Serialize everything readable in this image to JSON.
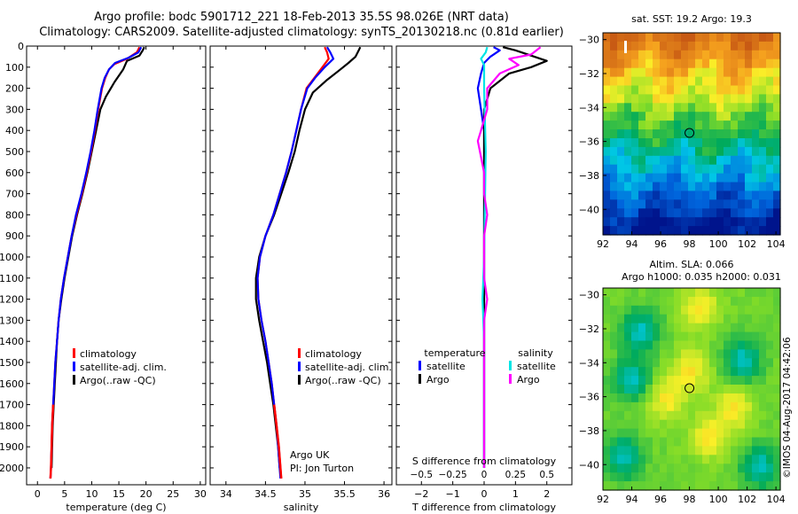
{
  "header": {
    "line1": "Argo profile: bodc 5901712_221 18-Feb-2013 35.5S 98.026E (NRT data)",
    "line2": "Climatology: CARS2009. Satellite-adjusted climatology: synTS_20130218.nc (0.81d earlier)"
  },
  "colors": {
    "climatology": "#ff0000",
    "satellite": "#0000ff",
    "argo": "#000000",
    "salinity_satellite": "#00e5e5",
    "salinity_argo": "#ff00ff"
  },
  "chart_data": [
    {
      "type": "line",
      "xlabel": "temperature (deg C)",
      "ylabel": "",
      "xlim": [
        -2,
        31
      ],
      "ylim": [
        2080,
        0
      ],
      "xticks": [
        "0",
        "5",
        "10",
        "15",
        "20",
        "25",
        "30"
      ],
      "yticks": [
        "0",
        "100",
        "200",
        "300",
        "400",
        "500",
        "600",
        "700",
        "800",
        "900",
        "1000",
        "1100",
        "1200",
        "1300",
        "1400",
        "1500",
        "1600",
        "1700",
        "1800",
        "1900",
        "2000"
      ],
      "legend": [
        "climatology",
        "satellite-adj. clim.",
        "Argo(..raw -QC)"
      ],
      "legend_loc": "lower-center",
      "series": [
        {
          "name": "climatology",
          "color": "#ff0000",
          "points": [
            [
              18.8,
              5
            ],
            [
              18.3,
              30
            ],
            [
              16.5,
              60
            ],
            [
              14.2,
              85
            ],
            [
              13.2,
              110
            ],
            [
              12.5,
              150
            ],
            [
              11.9,
              200
            ],
            [
              11.2,
              300
            ],
            [
              10.6,
              400
            ],
            [
              9.9,
              500
            ],
            [
              9.1,
              600
            ],
            [
              8.2,
              700
            ],
            [
              7.2,
              800
            ],
            [
              6.3,
              900
            ],
            [
              5.6,
              1000
            ],
            [
              4.9,
              1100
            ],
            [
              4.3,
              1200
            ],
            [
              3.9,
              1300
            ],
            [
              3.6,
              1400
            ],
            [
              3.3,
              1500
            ],
            [
              3.1,
              1600
            ],
            [
              2.9,
              1700
            ],
            [
              2.7,
              1800
            ],
            [
              2.6,
              1900
            ],
            [
              2.5,
              2000
            ],
            [
              2.4,
              2050
            ]
          ]
        },
        {
          "name": "satellite-adj. clim.",
          "color": "#0000ff",
          "points": [
            [
              19.1,
              5
            ],
            [
              18.6,
              30
            ],
            [
              16.8,
              55
            ],
            [
              14.3,
              80
            ],
            [
              13.2,
              110
            ],
            [
              12.4,
              150
            ],
            [
              11.8,
              200
            ],
            [
              11.1,
              300
            ],
            [
              10.5,
              400
            ],
            [
              9.8,
              500
            ],
            [
              9.0,
              600
            ],
            [
              8.1,
              700
            ],
            [
              7.1,
              800
            ],
            [
              6.3,
              900
            ],
            [
              5.6,
              1000
            ],
            [
              4.9,
              1100
            ],
            [
              4.3,
              1200
            ],
            [
              3.9,
              1300
            ],
            [
              3.6,
              1400
            ],
            [
              3.3,
              1500
            ],
            [
              3.1,
              1600
            ],
            [
              2.9,
              1700
            ],
            [
              2.7,
              1800
            ],
            [
              2.6,
              1900
            ],
            [
              2.5,
              2000
            ],
            [
              2.4,
              2050
            ]
          ]
        },
        {
          "name": "Argo(..raw -QC)",
          "color": "#000000",
          "points": [
            [
              19.7,
              5
            ],
            [
              19.4,
              20
            ],
            [
              18.8,
              45
            ],
            [
              16.5,
              70
            ],
            [
              15.8,
              110
            ],
            [
              14.2,
              170
            ],
            [
              12.6,
              240
            ],
            [
              11.6,
              300
            ],
            [
              10.8,
              400
            ],
            [
              10.0,
              500
            ],
            [
              9.2,
              600
            ],
            [
              8.3,
              700
            ],
            [
              7.3,
              800
            ],
            [
              6.4,
              900
            ],
            [
              5.7,
              1000
            ],
            [
              5.0,
              1100
            ],
            [
              4.4,
              1200
            ],
            [
              3.9,
              1300
            ],
            [
              3.6,
              1400
            ],
            [
              3.4,
              1500
            ],
            [
              3.2,
              1600
            ],
            [
              3.0,
              1700
            ],
            [
              2.8,
              1800
            ],
            [
              2.7,
              1900
            ],
            [
              2.6,
              2000
            ]
          ]
        }
      ]
    },
    {
      "type": "line",
      "xlabel": "salinity",
      "xlim": [
        33.8,
        36.1
      ],
      "ylim": [
        2080,
        0
      ],
      "xticks": [
        "34",
        "34.5",
        "35",
        "35.5",
        "36"
      ],
      "legend": [
        "climatology",
        "satellite-adj. clim.",
        "Argo(..raw -QC)"
      ],
      "annotation": [
        "Argo UK",
        "PI: Jon Turton"
      ],
      "series": [
        {
          "name": "climatology",
          "color": "#ff0000",
          "points": [
            [
              35.25,
              5
            ],
            [
              35.28,
              30
            ],
            [
              35.3,
              60
            ],
            [
              35.22,
              100
            ],
            [
              35.12,
              150
            ],
            [
              35.02,
              200
            ],
            [
              34.95,
              300
            ],
            [
              34.89,
              400
            ],
            [
              34.83,
              500
            ],
            [
              34.76,
              600
            ],
            [
              34.68,
              700
            ],
            [
              34.6,
              800
            ],
            [
              34.5,
              900
            ],
            [
              34.43,
              1000
            ],
            [
              34.4,
              1100
            ],
            [
              34.41,
              1200
            ],
            [
              34.45,
              1300
            ],
            [
              34.5,
              1400
            ],
            [
              34.54,
              1500
            ],
            [
              34.58,
              1600
            ],
            [
              34.61,
              1700
            ],
            [
              34.64,
              1800
            ],
            [
              34.67,
              1900
            ],
            [
              34.69,
              2000
            ],
            [
              34.7,
              2050
            ]
          ]
        },
        {
          "name": "satellite-adj. clim.",
          "color": "#0000ff",
          "points": [
            [
              35.28,
              5
            ],
            [
              35.32,
              30
            ],
            [
              35.36,
              60
            ],
            [
              35.25,
              100
            ],
            [
              35.13,
              150
            ],
            [
              35.03,
              200
            ],
            [
              34.95,
              300
            ],
            [
              34.89,
              400
            ],
            [
              34.83,
              500
            ],
            [
              34.76,
              600
            ],
            [
              34.68,
              700
            ],
            [
              34.6,
              800
            ],
            [
              34.5,
              900
            ],
            [
              34.43,
              1000
            ],
            [
              34.4,
              1100
            ],
            [
              34.41,
              1200
            ],
            [
              34.45,
              1300
            ],
            [
              34.5,
              1400
            ],
            [
              34.54,
              1500
            ],
            [
              34.58,
              1600
            ],
            [
              34.61,
              1700
            ],
            [
              34.64,
              1800
            ],
            [
              34.66,
              1900
            ],
            [
              34.68,
              2000
            ],
            [
              34.69,
              2050
            ]
          ]
        },
        {
          "name": "Argo(..raw -QC)",
          "color": "#000000",
          "points": [
            [
              35.7,
              5
            ],
            [
              35.68,
              20
            ],
            [
              35.64,
              50
            ],
            [
              35.55,
              80
            ],
            [
              35.45,
              110
            ],
            [
              35.28,
              160
            ],
            [
              35.1,
              220
            ],
            [
              35.0,
              300
            ],
            [
              34.93,
              400
            ],
            [
              34.87,
              500
            ],
            [
              34.79,
              600
            ],
            [
              34.7,
              700
            ],
            [
              34.61,
              800
            ],
            [
              34.5,
              900
            ],
            [
              34.42,
              1000
            ],
            [
              34.38,
              1100
            ],
            [
              34.38,
              1200
            ],
            [
              34.42,
              1300
            ],
            [
              34.47,
              1400
            ],
            [
              34.52,
              1500
            ],
            [
              34.56,
              1600
            ],
            [
              34.6,
              1700
            ],
            [
              34.63,
              1800
            ],
            [
              34.66,
              1900
            ],
            [
              34.68,
              2000
            ]
          ]
        }
      ]
    },
    {
      "type": "line",
      "xlabel": "T difference from climatology",
      "xlabel_top": "S difference from climatology",
      "xlim": [
        -2.8,
        2.8
      ],
      "ylim": [
        2080,
        0
      ],
      "xticks": [
        "-2",
        "-1",
        "0",
        "1",
        "2"
      ],
      "xticks_top": [
        "-0.5",
        "-0.25",
        "0",
        "0.25",
        "0.5"
      ],
      "legend_headers": [
        "temperature",
        "salinity"
      ],
      "legend": [
        "satellite",
        "Argo",
        "satellite",
        "Argo"
      ],
      "series": [
        {
          "name": "temperature satellite",
          "color": "#0000ff",
          "points": [
            [
              0.3,
              5
            ],
            [
              0.5,
              20
            ],
            [
              0.2,
              50
            ],
            [
              0.0,
              80
            ],
            [
              -0.1,
              130
            ],
            [
              -0.2,
              200
            ],
            [
              -0.1,
              300
            ],
            [
              0.0,
              400
            ],
            [
              0.0,
              600
            ],
            [
              0.0,
              1000
            ],
            [
              0.0,
              2000
            ]
          ]
        },
        {
          "name": "temperature Argo",
          "color": "#000000",
          "points": [
            [
              0.6,
              5
            ],
            [
              1.0,
              20
            ],
            [
              2.0,
              70
            ],
            [
              1.5,
              100
            ],
            [
              0.8,
              130
            ],
            [
              0.2,
              200
            ],
            [
              0.0,
              300
            ],
            [
              0.0,
              400
            ],
            [
              0.0,
              600
            ],
            [
              0.0,
              1000
            ],
            [
              0.0,
              2000
            ]
          ]
        },
        {
          "name": "salinity satellite",
          "color": "#00e5e5",
          "points": [
            [
              0.1,
              5
            ],
            [
              0.05,
              30
            ],
            [
              -0.1,
              60
            ],
            [
              0.0,
              90
            ],
            [
              0.0,
              200
            ],
            [
              0.05,
              500
            ],
            [
              0.0,
              1000
            ],
            [
              -0.05,
              1200
            ],
            [
              0.0,
              1400
            ],
            [
              0.0,
              2000
            ]
          ]
        },
        {
          "name": "salinity Argo",
          "color": "#ff00ff",
          "points": [
            [
              1.8,
              5
            ],
            [
              1.5,
              40
            ],
            [
              0.8,
              60
            ],
            [
              1.1,
              90
            ],
            [
              0.5,
              130
            ],
            [
              0.1,
              200
            ],
            [
              0.1,
              300
            ],
            [
              -0.1,
              400
            ],
            [
              -0.2,
              450
            ],
            [
              0.0,
              600
            ],
            [
              0.0,
              700
            ],
            [
              0.1,
              800
            ],
            [
              0.0,
              900
            ],
            [
              0.0,
              1100
            ],
            [
              0.1,
              1200
            ],
            [
              0.0,
              1300
            ],
            [
              0.0,
              2000
            ]
          ]
        }
      ]
    },
    {
      "type": "heatmap",
      "title": "sat. SST: 19.2  Argo: 19.3",
      "xlim": [
        92,
        104.3
      ],
      "ylim": [
        -41.5,
        -29.6
      ],
      "xticks": [
        "92",
        "94",
        "96",
        "98",
        "100",
        "102",
        "104"
      ],
      "yticks": [
        "-30",
        "-32",
        "-34",
        "-36",
        "-38",
        "-40"
      ],
      "marker": [
        98.0,
        -35.5
      ]
    },
    {
      "type": "heatmap",
      "title": "Altim. SLA: 0.066",
      "subtitle": "Argo h1000: 0.035 h2000: 0.031",
      "xlim": [
        92,
        104.3
      ],
      "ylim": [
        -41.5,
        -29.6
      ],
      "xticks": [
        "92",
        "94",
        "96",
        "98",
        "100",
        "102",
        "104"
      ],
      "yticks": [
        "-30",
        "-32",
        "-34",
        "-36",
        "-38",
        "-40"
      ],
      "marker": [
        98.0,
        -35.5
      ]
    }
  ],
  "footer": {
    "stamp": "©IMOS 04-Aug-2017 04:42:06"
  }
}
